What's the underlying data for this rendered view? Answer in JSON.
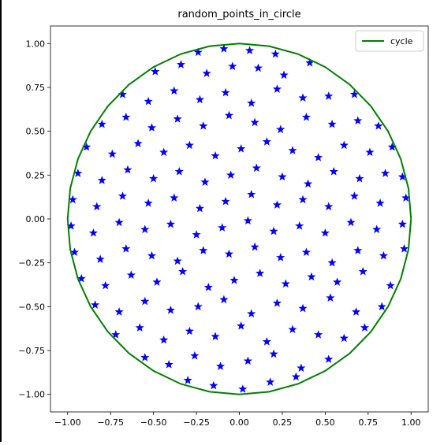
{
  "chart_data": {
    "type": "scatter",
    "title": "random_points_in_circle",
    "xlim": [
      -1.1,
      1.1
    ],
    "ylim": [
      -1.1,
      1.1
    ],
    "xticks": [
      {
        "value": -1,
        "label": "−1.00"
      },
      {
        "value": -0.75,
        "label": "−0.75"
      },
      {
        "value": -0.5,
        "label": "−0.50"
      },
      {
        "value": -0.25,
        "label": "−0.25"
      },
      {
        "value": 0,
        "label": "0.00"
      },
      {
        "value": 0.25,
        "label": "0.25"
      },
      {
        "value": 0.5,
        "label": "0.50"
      },
      {
        "value": 0.75,
        "label": "0.75"
      },
      {
        "value": 1,
        "label": "1.00"
      }
    ],
    "yticks": [
      {
        "value": -1,
        "label": "−1.00"
      },
      {
        "value": -0.75,
        "label": "−0.75"
      },
      {
        "value": -0.5,
        "label": "−0.50"
      },
      {
        "value": -0.25,
        "label": "−0.25"
      },
      {
        "value": 0,
        "label": "0.00"
      },
      {
        "value": 0.25,
        "label": "0.25"
      },
      {
        "value": 0.5,
        "label": "0.50"
      },
      {
        "value": 0.75,
        "label": "0.75"
      },
      {
        "value": 1,
        "label": "1.00"
      }
    ],
    "legend": "upper right",
    "series": [
      {
        "type": "scatter",
        "color": "#0000ff",
        "x": [
          -0.3,
          -0.15,
          0.02,
          0.18,
          0.33,
          -0.55,
          -0.41,
          -0.26,
          -0.11,
          0.05,
          0.2,
          0.36,
          0.52,
          -0.72,
          -0.58,
          -0.44,
          -0.29,
          -0.14,
          0.01,
          0.16,
          0.31,
          0.46,
          0.61,
          0.73,
          -0.84,
          -0.7,
          -0.55,
          -0.4,
          -0.24,
          -0.09,
          0.07,
          0.22,
          0.37,
          0.53,
          0.68,
          0.83,
          -0.92,
          -0.78,
          -0.63,
          -0.48,
          -0.33,
          -0.18,
          -0.03,
          0.12,
          0.27,
          0.42,
          0.57,
          0.72,
          0.88,
          -0.96,
          -0.81,
          -0.66,
          -0.51,
          -0.36,
          -0.21,
          -0.06,
          0.09,
          0.24,
          0.39,
          0.54,
          0.69,
          0.84,
          0.96,
          -0.98,
          -0.85,
          -0.7,
          -0.55,
          -0.4,
          -0.25,
          -0.1,
          0.05,
          0.2,
          0.35,
          0.5,
          0.65,
          0.8,
          0.95,
          -0.97,
          -0.83,
          -0.68,
          -0.53,
          -0.38,
          -0.23,
          -0.08,
          0.07,
          0.22,
          0.37,
          0.52,
          0.67,
          0.82,
          0.97,
          -0.94,
          -0.8,
          -0.65,
          -0.5,
          -0.35,
          -0.2,
          -0.05,
          0.1,
          0.25,
          0.4,
          0.55,
          0.7,
          0.85,
          0.95,
          -0.89,
          -0.74,
          -0.59,
          -0.44,
          -0.29,
          -0.14,
          0.01,
          0.16,
          0.31,
          0.46,
          0.61,
          0.76,
          0.89,
          -0.8,
          -0.66,
          -0.51,
          -0.36,
          -0.21,
          -0.06,
          0.09,
          0.24,
          0.39,
          0.54,
          0.69,
          0.81,
          -0.68,
          -0.53,
          -0.38,
          -0.23,
          -0.08,
          0.07,
          0.22,
          0.37,
          0.52,
          0.67,
          -0.49,
          -0.34,
          -0.19,
          -0.04,
          0.11,
          0.26,
          0.41,
          -0.24,
          -0.09,
          0.06,
          0.21
        ],
        "y": [
          -0.92,
          -0.95,
          -0.97,
          -0.93,
          -0.9,
          -0.79,
          -0.83,
          -0.78,
          -0.84,
          -0.81,
          -0.77,
          -0.85,
          -0.8,
          -0.66,
          -0.62,
          -0.69,
          -0.64,
          -0.67,
          -0.61,
          -0.7,
          -0.63,
          -0.66,
          -0.68,
          -0.62,
          -0.49,
          -0.53,
          -0.47,
          -0.52,
          -0.5,
          -0.46,
          -0.54,
          -0.48,
          -0.51,
          -0.45,
          -0.53,
          -0.5,
          -0.34,
          -0.38,
          -0.32,
          -0.36,
          -0.3,
          -0.39,
          -0.35,
          -0.31,
          -0.37,
          -0.33,
          -0.36,
          -0.3,
          -0.38,
          -0.19,
          -0.23,
          -0.17,
          -0.21,
          -0.24,
          -0.18,
          -0.2,
          -0.16,
          -0.22,
          -0.19,
          -0.25,
          -0.18,
          -0.21,
          -0.17,
          -0.04,
          -0.08,
          -0.02,
          -0.06,
          -0.03,
          -0.09,
          -0.05,
          -0.01,
          -0.07,
          -0.04,
          -0.08,
          -0.02,
          -0.06,
          -0.03,
          0.11,
          0.07,
          0.13,
          0.09,
          0.12,
          0.06,
          0.1,
          0.14,
          0.08,
          0.11,
          0.07,
          0.13,
          0.09,
          0.12,
          0.26,
          0.22,
          0.28,
          0.23,
          0.27,
          0.21,
          0.25,
          0.29,
          0.24,
          0.2,
          0.27,
          0.23,
          0.26,
          0.24,
          0.41,
          0.37,
          0.43,
          0.38,
          0.42,
          0.36,
          0.4,
          0.44,
          0.39,
          0.35,
          0.42,
          0.38,
          0.41,
          0.54,
          0.58,
          0.52,
          0.57,
          0.53,
          0.59,
          0.55,
          0.51,
          0.58,
          0.54,
          0.56,
          0.53,
          0.71,
          0.67,
          0.73,
          0.68,
          0.72,
          0.66,
          0.74,
          0.69,
          0.7,
          0.71,
          0.84,
          0.88,
          0.83,
          0.87,
          0.86,
          0.82,
          0.89,
          0.95,
          0.97,
          0.96,
          0.94
        ]
      },
      {
        "type": "line",
        "name": "cycle",
        "color": "#008000",
        "x": [
          1,
          0.985,
          0.94,
          0.866,
          0.766,
          0.643,
          0.5,
          0.342,
          0.174,
          0,
          -0.174,
          -0.342,
          -0.5,
          -0.643,
          -0.766,
          -0.866,
          -0.94,
          -0.985,
          -1,
          -0.985,
          -0.94,
          -0.866,
          -0.766,
          -0.643,
          -0.5,
          -0.342,
          -0.174,
          0,
          0.174,
          0.342,
          0.5,
          0.643,
          0.766,
          0.866,
          0.94,
          0.985,
          1
        ],
        "y": [
          0,
          0.174,
          0.342,
          0.5,
          0.643,
          0.766,
          0.866,
          0.94,
          0.985,
          1,
          0.985,
          0.94,
          0.866,
          0.766,
          0.643,
          0.5,
          0.342,
          0.174,
          0,
          -0.174,
          -0.342,
          -0.5,
          -0.643,
          -0.766,
          -0.866,
          -0.94,
          -0.985,
          -1,
          -0.985,
          -0.94,
          -0.866,
          -0.766,
          -0.643,
          -0.5,
          -0.342,
          -0.174,
          0
        ]
      }
    ]
  }
}
